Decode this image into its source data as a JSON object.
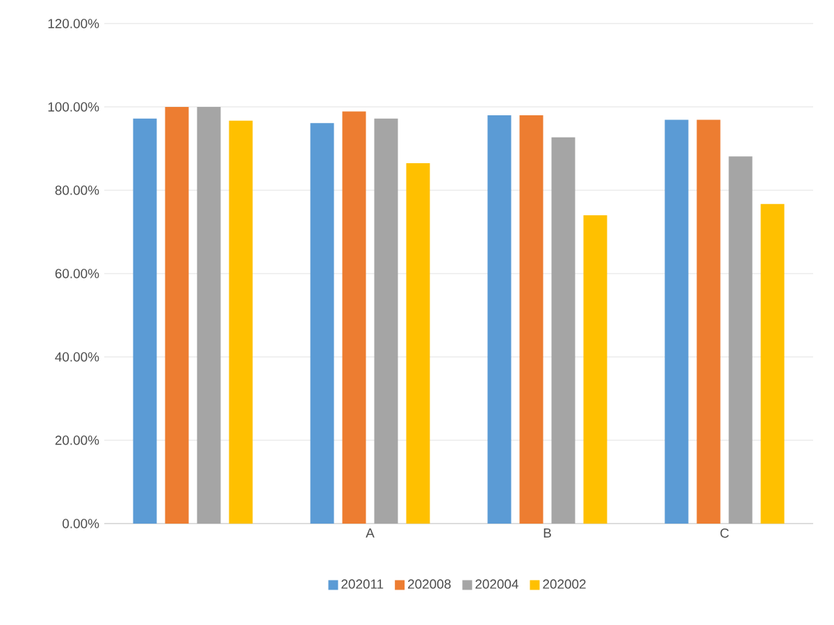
{
  "chart_data": {
    "type": "bar",
    "categories": [
      null,
      "A",
      "B",
      "C"
    ],
    "series": [
      {
        "name": "202011",
        "color": "#5b9bd5",
        "values": [
          97.2,
          96.1,
          98.0,
          96.9
        ]
      },
      {
        "name": "202008",
        "color": "#ed7d31",
        "values": [
          100,
          98.9,
          98.0,
          96.9
        ]
      },
      {
        "name": "202004",
        "color": "#a5a5a5",
        "values": [
          100,
          97.2,
          92.7,
          88.1
        ]
      },
      {
        "name": "202002",
        "color": "#ffc000",
        "values": [
          96.7,
          86.5,
          74.0,
          76.7
        ]
      }
    ],
    "ylim": [
      0,
      120
    ],
    "yticks": [
      {
        "value": 0,
        "label": "0.00%"
      },
      {
        "value": 20,
        "label": "20.00%"
      },
      {
        "value": 40,
        "label": "40.00%"
      },
      {
        "value": 60,
        "label": "60.00%"
      },
      {
        "value": 80,
        "label": "80.00%"
      },
      {
        "value": 100,
        "label": "100.00%"
      },
      {
        "value": 120,
        "label": "120.00%"
      }
    ],
    "grid": "y",
    "legend": "bottom"
  }
}
